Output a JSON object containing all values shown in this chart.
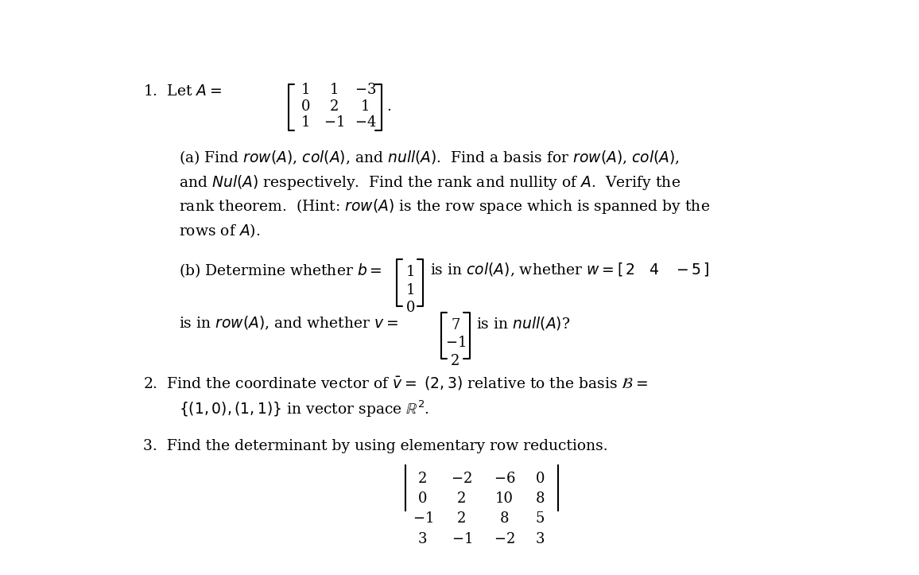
{
  "background_color": "#ffffff",
  "text_color": "#000000",
  "fig_width": 11.56,
  "fig_height": 7.23,
  "dpi": 100
}
